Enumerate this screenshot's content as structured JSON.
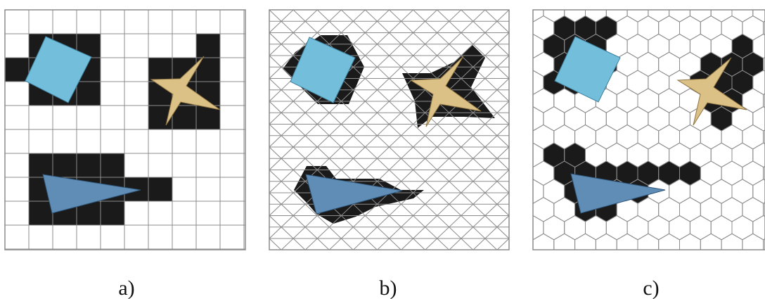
{
  "panels": [
    {
      "label": "a)",
      "grid": "square"
    },
    {
      "label": "b)",
      "grid": "triangular"
    },
    {
      "label": "c)",
      "grid": "hexagonal"
    }
  ],
  "colors": {
    "background": "#ffffff",
    "gridline": "#8c8c8c",
    "occupied_cell": "#1a1a1a",
    "square_shape": "#72bedb",
    "star_shape": "#dcc187",
    "triangle_shape": "#5f8db5"
  },
  "objects": [
    "rotated-square",
    "four-point-star",
    "elongated-triangle"
  ]
}
